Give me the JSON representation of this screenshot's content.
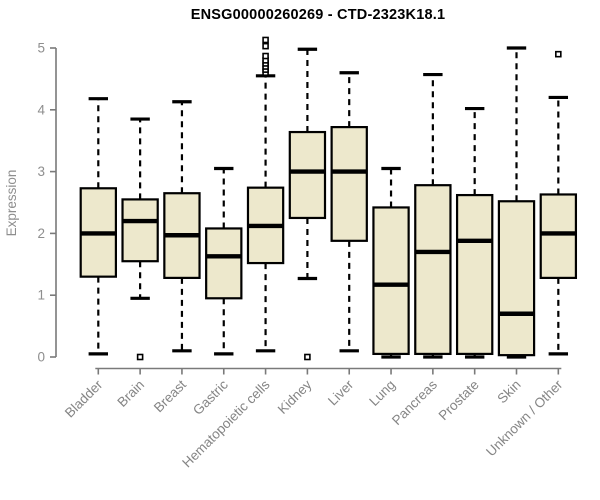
{
  "chart_data": {
    "type": "boxplot",
    "title": "ENSG00000260269 - CTD-2323K18.1",
    "ylabel": "Expression",
    "ylim": [
      0,
      5
    ],
    "yticks": [
      0,
      1,
      2,
      3,
      4,
      5
    ],
    "grid": false,
    "legend": "none",
    "categories": [
      "Bladder",
      "Brain",
      "Breast",
      "Gastric",
      "Hematopoietic cells",
      "Kidney",
      "Liver",
      "Lung",
      "Pancreas",
      "Prostate",
      "Skin",
      "Unknown / Other"
    ],
    "series": [
      {
        "label": "Bladder",
        "whisker_low": 0.05,
        "q1": 1.3,
        "median": 2.0,
        "q3": 2.73,
        "whisker_high": 4.18,
        "outliers": []
      },
      {
        "label": "Brain",
        "whisker_low": 0.95,
        "q1": 1.55,
        "median": 2.2,
        "q3": 2.55,
        "whisker_high": 3.85,
        "outliers": [
          0.0
        ]
      },
      {
        "label": "Breast",
        "whisker_low": 0.1,
        "q1": 1.28,
        "median": 1.97,
        "q3": 2.65,
        "whisker_high": 4.13,
        "outliers": []
      },
      {
        "label": "Gastric",
        "whisker_low": 0.05,
        "q1": 0.95,
        "median": 1.63,
        "q3": 2.08,
        "whisker_high": 3.05,
        "outliers": []
      },
      {
        "label": "Hematopoietic cells",
        "whisker_low": 0.1,
        "q1": 1.52,
        "median": 2.12,
        "q3": 2.74,
        "whisker_high": 4.55,
        "outliers": [
          4.6,
          4.65,
          4.7,
          4.75,
          4.8,
          4.87,
          5.03,
          5.13
        ]
      },
      {
        "label": "Kidney",
        "whisker_low": 1.27,
        "q1": 2.25,
        "median": 3.0,
        "q3": 3.64,
        "whisker_high": 4.98,
        "outliers": [
          0.0
        ]
      },
      {
        "label": "Liver",
        "whisker_low": 0.1,
        "q1": 1.88,
        "median": 3.0,
        "q3": 3.72,
        "whisker_high": 4.6,
        "outliers": []
      },
      {
        "label": "Lung",
        "whisker_low": 0.0,
        "q1": 0.05,
        "median": 1.17,
        "q3": 2.42,
        "whisker_high": 3.05,
        "outliers": []
      },
      {
        "label": "Pancreas",
        "whisker_low": 0.0,
        "q1": 0.05,
        "median": 1.7,
        "q3": 2.78,
        "whisker_high": 4.57,
        "outliers": []
      },
      {
        "label": "Prostate",
        "whisker_low": 0.0,
        "q1": 0.05,
        "median": 1.88,
        "q3": 2.62,
        "whisker_high": 4.02,
        "outliers": []
      },
      {
        "label": "Skin",
        "whisker_low": 0.0,
        "q1": 0.03,
        "median": 0.7,
        "q3": 2.52,
        "whisker_high": 5.0,
        "outliers": []
      },
      {
        "label": "Unknown / Other",
        "whisker_low": 0.05,
        "q1": 1.28,
        "median": 2.0,
        "q3": 2.63,
        "whisker_high": 4.2,
        "outliers": [
          4.9
        ]
      }
    ],
    "colors": {
      "box_fill": "#ede8cc",
      "box_stroke": "#000000",
      "median": "#000000",
      "whisker": "#000000",
      "outlier_fill": "#ffffff",
      "outlier_stroke": "#000000",
      "axis": "#7a7a7a",
      "tick_label": "#8e8e8e",
      "category_label": "#858585",
      "title": "#000000",
      "background": "#ffffff"
    }
  }
}
